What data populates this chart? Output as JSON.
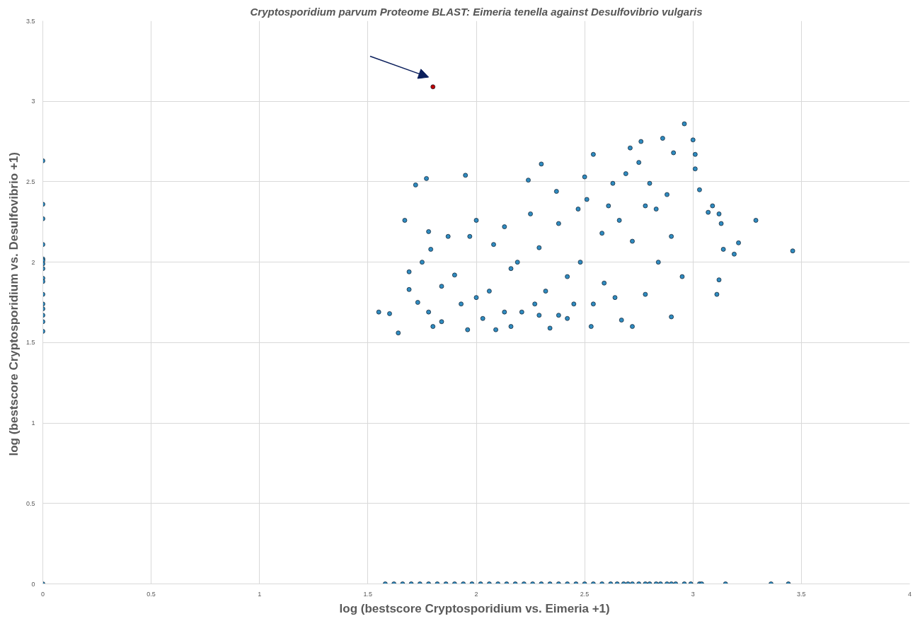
{
  "chart_data": {
    "type": "scatter",
    "title": "Cryptosporidium parvum Proteome BLAST: Eimeria tenella against Desulfovibrio vulgaris",
    "xlabel": "log (bestscore  Cryptosporidium vs. Eimeria +1)",
    "ylabel": "log (bestscore Cryptosporidium vs.  Desulfovibrio +1)",
    "xlim": [
      0,
      4
    ],
    "ylim": [
      0,
      3.5
    ],
    "xticks": [
      0,
      0.5,
      1,
      1.5,
      2,
      2.5,
      3,
      3.5,
      4
    ],
    "yticks": [
      0,
      0.5,
      1,
      1.5,
      2,
      2.5,
      3,
      3.5
    ],
    "grid": true,
    "marker": "circle",
    "series": [
      {
        "color": "#2e8bc0",
        "x": [
          0,
          0,
          0,
          0,
          0,
          0,
          0,
          0,
          0,
          0,
          0,
          0,
          0,
          0,
          0,
          0,
          0,
          1.58,
          1.62,
          1.66,
          1.7,
          1.74,
          1.78,
          1.82,
          1.86,
          1.9,
          1.94,
          1.98,
          2.02,
          2.06,
          2.1,
          2.14,
          2.18,
          2.22,
          2.26,
          2.3,
          2.34,
          2.38,
          2.42,
          2.46,
          2.5,
          2.54,
          2.58,
          2.62,
          2.65,
          2.68,
          2.7,
          2.72,
          2.75,
          2.78,
          2.8,
          2.83,
          2.85,
          2.88,
          2.9,
          2.92,
          2.96,
          2.99,
          3.03,
          3.04,
          3.15,
          3.36,
          3.44,
          1.55,
          1.6,
          1.64,
          1.67,
          1.72,
          1.77,
          1.78,
          1.79,
          1.75,
          1.69,
          1.69,
          1.73,
          1.78,
          1.84,
          1.87,
          1.9,
          1.95,
          1.97,
          2.0,
          2.0,
          2.03,
          2.08,
          2.09,
          2.13,
          2.16,
          2.21,
          2.24,
          2.25,
          2.3,
          2.29,
          2.32,
          2.34,
          2.37,
          2.38,
          2.42,
          2.45,
          2.47,
          2.5,
          2.51,
          2.53,
          2.54,
          2.58,
          2.59,
          2.61,
          2.63,
          2.66,
          2.67,
          2.69,
          2.71,
          2.72,
          2.75,
          2.76,
          2.78,
          2.78,
          2.8,
          2.83,
          2.84,
          2.86,
          2.88,
          2.9,
          2.9,
          2.91,
          2.95,
          2.96,
          3.0,
          3.01,
          3.01,
          3.03,
          3.07,
          3.09,
          3.11,
          3.12,
          3.12,
          3.13,
          3.14,
          3.19,
          3.21,
          3.29,
          3.46,
          1.84,
          1.93,
          2.06,
          2.13,
          2.19,
          2.27,
          2.38,
          2.48,
          2.54,
          2.64,
          2.72,
          1.8,
          1.96,
          2.16,
          2.29,
          2.42
        ],
        "values": [
          0,
          2.63,
          2.36,
          2.27,
          2.11,
          2.02,
          2.01,
          1.99,
          1.96,
          1.9,
          1.88,
          1.8,
          1.74,
          1.71,
          1.67,
          1.63,
          1.57,
          0,
          0,
          0,
          0,
          0,
          0,
          0,
          0,
          0,
          0,
          0,
          0,
          0,
          0,
          0,
          0,
          0,
          0,
          0,
          0,
          0,
          0,
          0,
          0,
          0,
          0,
          0,
          0,
          0,
          0,
          0,
          0,
          0,
          0,
          0,
          0,
          0,
          0,
          0,
          0,
          0,
          0,
          0,
          0,
          0,
          0,
          1.69,
          1.68,
          1.56,
          2.26,
          2.48,
          2.52,
          2.19,
          2.08,
          2.0,
          1.94,
          1.83,
          1.75,
          1.69,
          1.63,
          2.16,
          1.92,
          2.54,
          2.16,
          2.26,
          1.78,
          1.65,
          2.11,
          1.58,
          2.22,
          1.96,
          1.69,
          2.51,
          2.3,
          2.61,
          2.09,
          1.82,
          1.59,
          2.44,
          2.24,
          1.91,
          1.74,
          2.33,
          2.53,
          2.39,
          1.6,
          2.67,
          2.18,
          1.87,
          2.35,
          2.49,
          2.26,
          1.64,
          2.55,
          2.71,
          2.13,
          2.62,
          2.75,
          2.35,
          1.8,
          2.49,
          2.33,
          2.0,
          2.77,
          2.42,
          2.16,
          1.66,
          2.68,
          1.91,
          2.86,
          2.76,
          2.58,
          2.67,
          2.45,
          2.31,
          2.35,
          1.8,
          1.89,
          2.3,
          2.24,
          2.08,
          2.05,
          2.12,
          2.26,
          2.07,
          1.85,
          1.74,
          1.82,
          1.69,
          2.0,
          1.74,
          1.67,
          2.0,
          1.74,
          1.78,
          1.6,
          1.6,
          1.58,
          1.6,
          1.67,
          1.65
        ]
      },
      {
        "color": "#c00000",
        "x": [
          1.8
        ],
        "values": [
          3.09
        ]
      }
    ]
  }
}
